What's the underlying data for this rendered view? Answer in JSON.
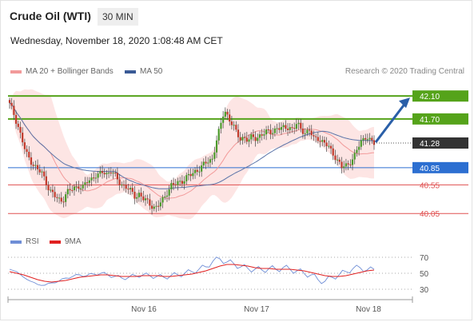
{
  "header": {
    "instrument": "Crude Oil (WTI)",
    "timeframe": "30 MIN",
    "date": "Wednesday, November 18, 2020 1:08:48 AM CET"
  },
  "legend": {
    "bb_label": "MA 20 + Bollinger Bands",
    "ma50_label": "MA 50",
    "credit": "Research © 2020 Trading Central",
    "rsi_label": "RSI",
    "rsi_ma_label": "9MA"
  },
  "colors": {
    "resistance": "#55a31a",
    "current": "#333333",
    "support_primary": "#2c6fd1",
    "support_secondary": "#e05050",
    "bb_fill": "#fde0df",
    "ma20": "#f29a9a",
    "ma50": "#5a73a8",
    "up_candle": "#4a9a2a",
    "down_candle": "#c0392b",
    "arrow": "#2a5fa8",
    "rsi": "#6f8ed6",
    "rsi_ma": "#e02020"
  },
  "chart_data": {
    "type": "candlestick",
    "title": "Crude Oil (WTI)",
    "timeframe": "30 MIN",
    "ylim": [
      39.9,
      42.2
    ],
    "x_ticks": [
      "Nov 16",
      "Nov 17",
      "Nov 18"
    ],
    "levels": [
      {
        "value": 42.1,
        "label": "42.10",
        "kind": "resistance"
      },
      {
        "value": 41.7,
        "label": "41.70",
        "kind": "resistance"
      },
      {
        "value": 41.28,
        "label": "41.28",
        "kind": "current"
      },
      {
        "value": 40.85,
        "label": "40.85",
        "kind": "support_primary"
      },
      {
        "value": 40.55,
        "label": "40.55",
        "kind": "support_secondary"
      },
      {
        "value": 40.05,
        "label": "40.05",
        "kind": "support_secondary"
      }
    ],
    "projection": {
      "from": 41.28,
      "to": 42.1
    },
    "close_path": [
      41.95,
      41.8,
      41.6,
      41.35,
      41.1,
      41.0,
      40.9,
      40.8,
      40.75,
      40.6,
      40.45,
      40.35,
      40.3,
      40.28,
      40.4,
      40.45,
      40.5,
      40.55,
      40.48,
      40.6,
      40.65,
      40.72,
      40.7,
      40.78,
      40.75,
      40.8,
      40.7,
      40.6,
      40.55,
      40.5,
      40.42,
      40.35,
      40.4,
      40.3,
      40.25,
      40.2,
      40.15,
      40.2,
      40.3,
      40.45,
      40.55,
      40.55,
      40.6,
      40.65,
      40.7,
      40.72,
      40.8,
      40.85,
      40.9,
      40.95,
      41.0,
      41.3,
      41.55,
      41.85,
      41.75,
      41.6,
      41.45,
      41.35,
      41.4,
      41.3,
      41.4,
      41.35,
      41.45,
      41.42,
      41.5,
      41.48,
      41.55,
      41.5,
      41.58,
      41.55,
      41.52,
      41.6,
      41.55,
      41.45,
      41.5,
      41.35,
      41.4,
      41.3,
      41.25,
      41.2,
      41.1,
      40.95,
      40.85,
      40.9,
      40.95,
      41.0,
      41.2,
      41.35,
      41.4,
      41.3,
      41.28
    ],
    "rsi": {
      "ylim": [
        20,
        80
      ],
      "ticks": [
        70,
        50,
        30
      ],
      "rsi_values": [
        55,
        52,
        45,
        40,
        36,
        35,
        38,
        40,
        44,
        46,
        48,
        47,
        49,
        50,
        48,
        46,
        44,
        45,
        47,
        48,
        47,
        46,
        45,
        47,
        48,
        50,
        52,
        55,
        58,
        65,
        68,
        64,
        62,
        58,
        56,
        55,
        54,
        56,
        55,
        57,
        55,
        53,
        50,
        48,
        42,
        40,
        45,
        48,
        52,
        56,
        57,
        54,
        55
      ],
      "ma_values": [
        52,
        50,
        48,
        45,
        42,
        40,
        39,
        40,
        41,
        43,
        45,
        46,
        47,
        48,
        48,
        47,
        46,
        46,
        46,
        47,
        47,
        47,
        46,
        46,
        47,
        48,
        49,
        51,
        53,
        56,
        59,
        61,
        61,
        60,
        59,
        57,
        56,
        56,
        55,
        55,
        55,
        54,
        53,
        51,
        49,
        47,
        46,
        46,
        47,
        49,
        51,
        53,
        54
      ]
    }
  }
}
